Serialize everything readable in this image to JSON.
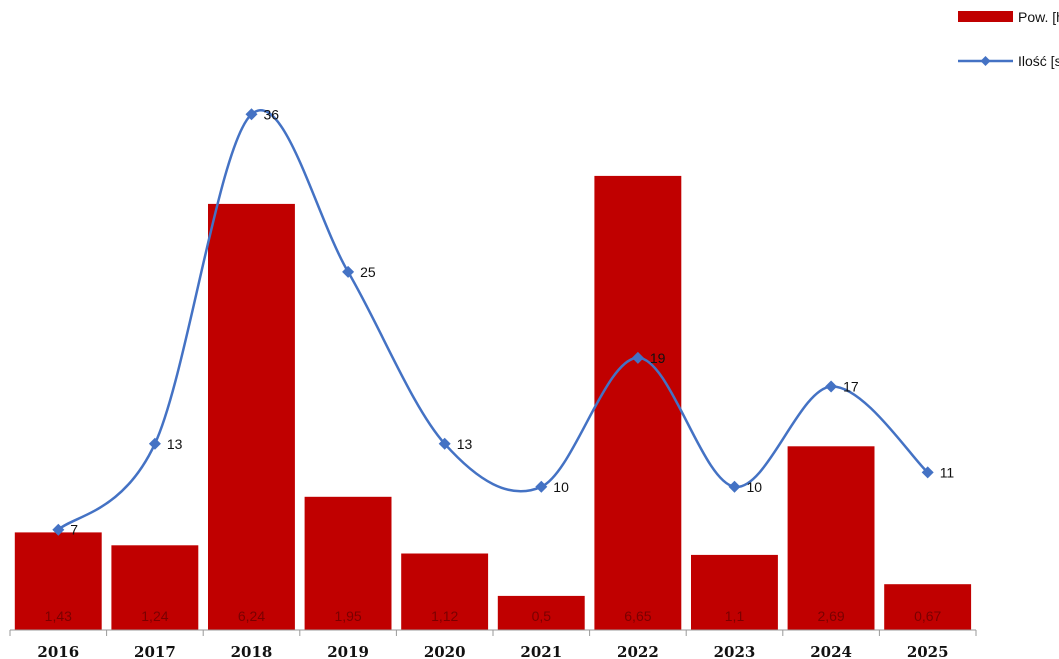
{
  "chart_data": {
    "type": "bar",
    "categories": [
      "2016",
      "2017",
      "2018",
      "2019",
      "2020",
      "2021",
      "2022",
      "2023",
      "2024",
      "2025"
    ],
    "series": [
      {
        "name": "Pow. [ha]",
        "type": "bar",
        "values": [
          1.43,
          1.24,
          6.24,
          1.95,
          1.12,
          0.5,
          6.65,
          1.1,
          2.69,
          0.67
        ],
        "labels": [
          "1,43",
          "1,24",
          "6,24",
          "1,95",
          "1,12",
          "0,5",
          "6,65",
          "1,1",
          "2,69",
          "0,67"
        ],
        "color": "#c00000"
      },
      {
        "name": "Ilość [szt.]",
        "type": "line",
        "smooth": true,
        "marker": "diamond",
        "values": [
          7,
          13,
          36,
          25,
          13,
          10,
          19,
          10,
          17,
          11
        ],
        "labels": [
          "7",
          "13",
          "36",
          "25",
          "13",
          "10",
          "19",
          "10",
          "17",
          "11"
        ],
        "color": "#4472c4"
      }
    ],
    "bar_axis_range": [
      0,
      7.3
    ],
    "line_axis_range": [
      0,
      40
    ],
    "grid": false,
    "legend_position": "top-right"
  }
}
